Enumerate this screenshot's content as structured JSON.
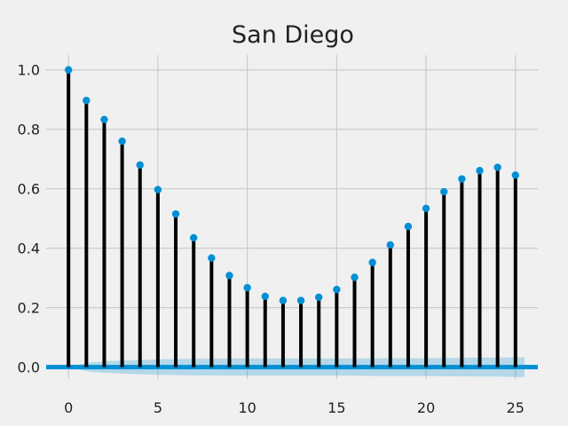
{
  "chart_data": {
    "type": "stem",
    "title": "San Diego",
    "xlabel": "",
    "ylabel": "",
    "xlim": [
      -1.25,
      26.25
    ],
    "ylim": [
      -0.04,
      1.05
    ],
    "x_ticks": [
      0,
      5,
      10,
      15,
      20,
      25
    ],
    "y_ticks": [
      0.0,
      0.2,
      0.4,
      0.6,
      0.8,
      1.0
    ],
    "x_tick_labels": [
      "0",
      "5",
      "10",
      "15",
      "20",
      "25"
    ],
    "y_tick_labels": [
      "0.0",
      "0.2",
      "0.4",
      "0.6",
      "0.8",
      "1.0"
    ],
    "grid": true,
    "series": [
      {
        "x": [
          0,
          1,
          2,
          3,
          4,
          5,
          6,
          7,
          8,
          9,
          10,
          11,
          12,
          13,
          14,
          15,
          16,
          17,
          18,
          19,
          20,
          21,
          22,
          23,
          24,
          25
        ],
        "values": [
          1.0,
          0.897,
          0.833,
          0.76,
          0.68,
          0.597,
          0.515,
          0.435,
          0.367,
          0.308,
          0.267,
          0.238,
          0.224,
          0.224,
          0.235,
          0.261,
          0.302,
          0.352,
          0.411,
          0.473,
          0.534,
          0.59,
          0.633,
          0.661,
          0.672,
          0.646
        ]
      }
    ],
    "confidence_band": {
      "x": [
        0,
        1,
        2,
        3,
        4,
        5,
        6,
        7,
        8,
        9,
        10,
        11,
        12,
        13,
        14,
        15,
        16,
        17,
        18,
        19,
        20,
        21,
        22,
        23,
        24,
        25
      ],
      "upper": [
        0.0,
        0.014,
        0.019,
        0.022,
        0.024,
        0.026,
        0.027,
        0.028,
        0.028,
        0.029,
        0.029,
        0.029,
        0.029,
        0.029,
        0.029,
        0.029,
        0.029,
        0.03,
        0.03,
        0.03,
        0.03,
        0.031,
        0.031,
        0.032,
        0.032,
        0.033
      ]
    },
    "colors": {
      "stem": "#000000",
      "marker": "#008fd5",
      "zero_line": "#008fd5",
      "band": "#008fd5",
      "grid": "#cbcbcb",
      "background": "#f0f0f0"
    }
  }
}
